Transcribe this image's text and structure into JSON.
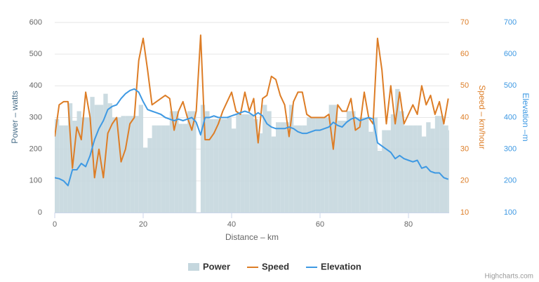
{
  "chart_data": {
    "type": "line",
    "xlabel": "Distance – km",
    "ytitle": "Power – watts",
    "y2title": "Speed – km/hour",
    "y3title": "Elevation –m",
    "credits": "Highcharts.com",
    "xlim": [
      0,
      89.2
    ],
    "xticks": [
      0,
      20,
      40,
      60,
      80
    ],
    "ylim": [
      0,
      600
    ],
    "yticks": [
      0,
      100,
      200,
      300,
      400,
      500,
      600
    ],
    "y2lim": [
      10,
      70
    ],
    "y2ticks": [
      10,
      20,
      30,
      40,
      50,
      60,
      70
    ],
    "y3lim": [
      100,
      700
    ],
    "y3ticks": [
      100,
      200,
      300,
      400,
      500,
      600,
      700
    ],
    "grid": true,
    "legend": "bottom",
    "x": [
      0,
      1,
      2,
      3,
      4,
      5,
      6,
      7,
      8,
      9,
      10,
      11,
      12,
      13,
      14,
      15,
      16,
      17,
      18,
      19,
      20,
      21,
      22,
      23,
      24,
      25,
      26,
      27,
      28,
      29,
      30,
      31,
      32,
      33,
      34,
      35,
      36,
      37,
      38,
      39,
      40,
      41,
      42,
      43,
      44,
      45,
      46,
      47,
      48,
      49,
      50,
      51,
      52,
      53,
      54,
      55,
      56,
      57,
      58,
      59,
      60,
      61,
      62,
      63,
      64,
      65,
      66,
      67,
      68,
      69,
      70,
      71,
      72,
      73,
      74,
      75,
      76,
      77,
      78,
      79,
      80,
      81,
      82,
      83,
      84,
      85,
      86,
      87,
      88,
      89
    ],
    "series": [
      {
        "name": "Power",
        "type": "area",
        "axis": "y",
        "color": "#c5d7de",
        "values": [
          295,
          275,
          275,
          345,
          290,
          320,
          300,
          300,
          365,
          340,
          340,
          375,
          345,
          300,
          300,
          305,
          305,
          305,
          305,
          340,
          205,
          235,
          275,
          275,
          275,
          275,
          320,
          320,
          280,
          280,
          320,
          320,
          0,
          340,
          320,
          295,
          295,
          295,
          295,
          300,
          265,
          310,
          310,
          310,
          310,
          295,
          250,
          340,
          320,
          240,
          285,
          285,
          285,
          340,
          275,
          275,
          275,
          300,
          300,
          300,
          300,
          300,
          340,
          340,
          290,
          290,
          320,
          320,
          300,
          300,
          300,
          255,
          300,
          195,
          260,
          260,
          310,
          390,
          320,
          275,
          275,
          275,
          275,
          240,
          285,
          265,
          305,
          305,
          275,
          260
        ]
      },
      {
        "name": "Speed",
        "type": "line",
        "axis": "y2",
        "color": "#dd7d26",
        "values": [
          34,
          44,
          45,
          45,
          24,
          37,
          33,
          48,
          40,
          21,
          30,
          21,
          35,
          38,
          40,
          26,
          30,
          38,
          40,
          58,
          65,
          55,
          44,
          45,
          46,
          47,
          46,
          36,
          42,
          45,
          40,
          36,
          42,
          66,
          33,
          33,
          35,
          38,
          42,
          45,
          48,
          42,
          41,
          48,
          42,
          46,
          32,
          46,
          47,
          53,
          52,
          47,
          44,
          34,
          45,
          48,
          48,
          41,
          40,
          40,
          40,
          40,
          41,
          30,
          44,
          42,
          42,
          46,
          36,
          37,
          48,
          40,
          38,
          65,
          55,
          38,
          50,
          38,
          48,
          38,
          41,
          44,
          41,
          50,
          44,
          47,
          41,
          45,
          38,
          46
        ]
      },
      {
        "name": "Elevation",
        "type": "line",
        "axis": "y3",
        "color": "#3e99e3",
        "values": [
          210,
          207,
          200,
          185,
          235,
          235,
          255,
          245,
          280,
          330,
          365,
          390,
          425,
          435,
          440,
          460,
          475,
          485,
          490,
          480,
          450,
          425,
          420,
          415,
          410,
          400,
          395,
          390,
          395,
          390,
          395,
          400,
          385,
          345,
          400,
          400,
          405,
          400,
          400,
          400,
          405,
          410,
          415,
          420,
          415,
          405,
          415,
          405,
          380,
          370,
          365,
          365,
          365,
          370,
          365,
          355,
          350,
          350,
          355,
          360,
          360,
          365,
          370,
          385,
          375,
          370,
          385,
          395,
          400,
          390,
          395,
          400,
          395,
          320,
          310,
          300,
          290,
          270,
          280,
          270,
          265,
          260,
          265,
          240,
          245,
          230,
          225,
          225,
          210,
          205
        ]
      }
    ]
  }
}
